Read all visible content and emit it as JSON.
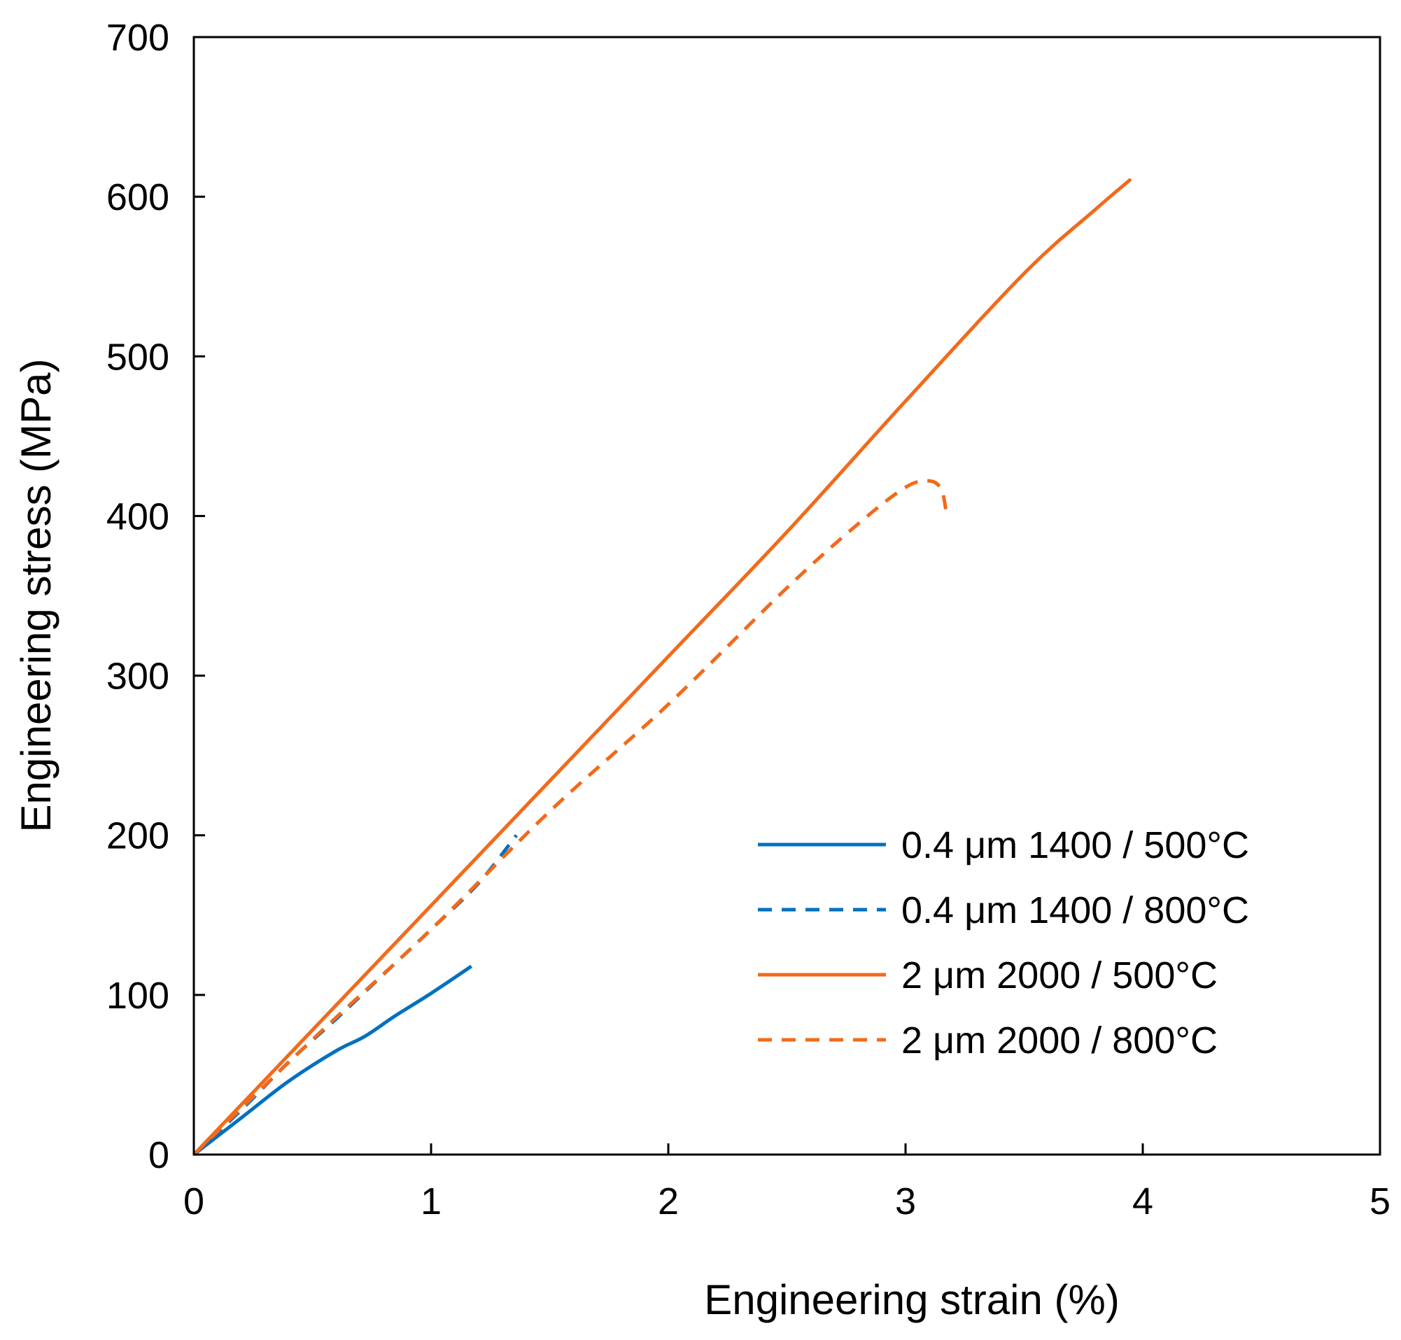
{
  "chart_data": {
    "type": "line",
    "title": "",
    "xlabel": "Engineering strain (%)",
    "ylabel": "Engineering stress (MPa)",
    "xlim": [
      0,
      5
    ],
    "ylim": [
      0,
      700
    ],
    "xticks": [
      "0",
      "1",
      "2",
      "3",
      "4",
      "5"
    ],
    "yticks": [
      "0",
      "100",
      "200",
      "300",
      "400",
      "500",
      "600",
      "700"
    ],
    "grid": false,
    "legend_position": "bottom-right",
    "series": [
      {
        "name": "0.4 μm 1400 / 500°C",
        "color": "#0070C0",
        "dash": "solid",
        "x": [
          0,
          0.2,
          0.4,
          0.6,
          0.72,
          0.85,
          1.0,
          1.17
        ],
        "y": [
          0,
          23,
          46,
          65,
          74,
          87,
          101,
          118
        ]
      },
      {
        "name": "0.4 μm 1400 / 800°C",
        "color": "#0070C0",
        "dash": "dashed",
        "x": [
          0,
          0.2,
          0.4,
          0.6,
          0.8,
          1.0,
          1.2,
          1.36
        ],
        "y": [
          0,
          28,
          58,
          85,
          113,
          141,
          170,
          200
        ]
      },
      {
        "name": "2 μm 2000 / 500°C",
        "color": "#F26A1B",
        "dash": "solid",
        "x": [
          0,
          0.5,
          1.0,
          1.5,
          2.0,
          2.5,
          3.0,
          3.5,
          3.8,
          3.95
        ],
        "y": [
          0,
          78,
          156,
          234,
          312,
          390,
          472,
          552,
          592,
          611
        ]
      },
      {
        "name": "2 μm 2000 / 800°C",
        "color": "#F26A1B",
        "dash": "dashed",
        "x": [
          0,
          0.5,
          1.0,
          1.5,
          2.0,
          2.5,
          2.8,
          3.0,
          3.1,
          3.15,
          3.17
        ],
        "y": [
          0,
          72,
          141,
          215,
          282,
          355,
          395,
          418,
          422,
          417,
          404
        ]
      }
    ]
  }
}
